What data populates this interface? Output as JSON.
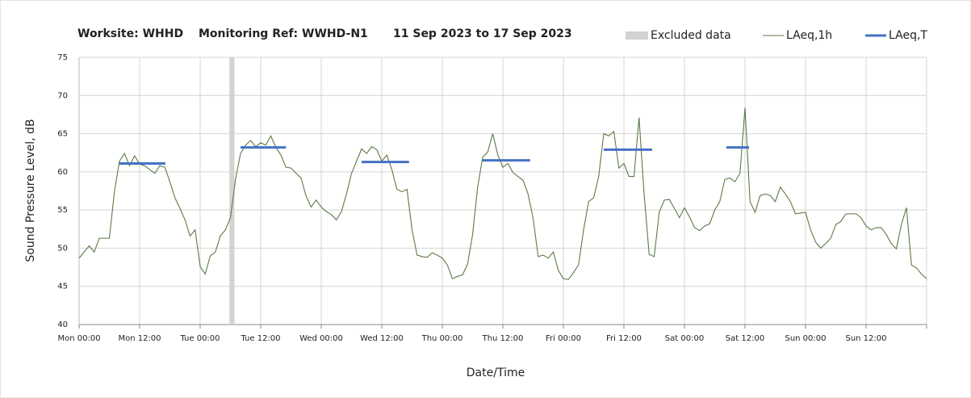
{
  "chart_data": {
    "type": "line",
    "title_parts": [
      "Worksite: WHHD",
      "Monitoring Ref: WWHD-N1",
      "11 Sep 2023 to 17 Sep 2023"
    ],
    "x_label": "Date/Time",
    "y_label": "Sound Pressure Level, dB",
    "xlim": [
      0,
      168
    ],
    "xticks": [
      {
        "value": 0,
        "label": "Mon 00:00"
      },
      {
        "value": 12,
        "label": "Mon 12:00"
      },
      {
        "value": 24,
        "label": "Tue 00:00"
      },
      {
        "value": 36,
        "label": "Tue 12:00"
      },
      {
        "value": 48,
        "label": "Wed 00:00"
      },
      {
        "value": 60,
        "label": "Wed 12:00"
      },
      {
        "value": 72,
        "label": "Thu 00:00"
      },
      {
        "value": 84,
        "label": "Thu 12:00"
      },
      {
        "value": 96,
        "label": "Fri 00:00"
      },
      {
        "value": 108,
        "label": "Fri 12:00"
      },
      {
        "value": 120,
        "label": "Sat 00:00"
      },
      {
        "value": 132,
        "label": "Sat 12:00"
      },
      {
        "value": 144,
        "label": "Sun 00:00"
      },
      {
        "value": 156,
        "label": "Sun 12:00"
      },
      {
        "value": 168,
        "label": ""
      }
    ],
    "ylim": [
      40,
      75
    ],
    "yticks": [
      40,
      45,
      50,
      55,
      60,
      65,
      70,
      75
    ],
    "grid": true,
    "legend": "top-right",
    "excluded": {
      "name": "Excluded data",
      "color": "#d3d3d3",
      "x": [
        29.8,
        30.8
      ]
    },
    "series": [
      {
        "name": "LAeq,1h",
        "color": "#5b7a47",
        "x": [
          0,
          1,
          2,
          3,
          4,
          5,
          6,
          7,
          8,
          9,
          10,
          11,
          12,
          13,
          14,
          15,
          16,
          17,
          18,
          19,
          20,
          21,
          22,
          23,
          24,
          25,
          26,
          27,
          28,
          29,
          30,
          31,
          32,
          33,
          34,
          35,
          36,
          37,
          38,
          39,
          40,
          41,
          42,
          43,
          44,
          45,
          46,
          47,
          48,
          49,
          50,
          51,
          52,
          53,
          54,
          55,
          56,
          57,
          58,
          59,
          60,
          61,
          62,
          63,
          64,
          65,
          66,
          67,
          68,
          69,
          70,
          71,
          72,
          73,
          74,
          75,
          76,
          77,
          78,
          79,
          80,
          81,
          82,
          83,
          84,
          85,
          86,
          87,
          88,
          89,
          90,
          91,
          92,
          93,
          94,
          95,
          96,
          97,
          98,
          99,
          100,
          101,
          102,
          103,
          104,
          105,
          106,
          107,
          108,
          109,
          110,
          111,
          112,
          113,
          114,
          115,
          116,
          117,
          118,
          119,
          120,
          121,
          122,
          123,
          124,
          125,
          126,
          127,
          128,
          129,
          130,
          131,
          132,
          133,
          134,
          135,
          136,
          137,
          138,
          139,
          140,
          141,
          142,
          143,
          144,
          145,
          146,
          147,
          148,
          149,
          150,
          151,
          152,
          153,
          154,
          155,
          156,
          157,
          158,
          159,
          160,
          161,
          162,
          163,
          164,
          165,
          166,
          167,
          168
        ],
        "values": [
          48.7,
          49.5,
          50.3,
          49.5,
          51.3,
          51.3,
          51.3,
          57.4,
          61.4,
          62.4,
          60.8,
          62.1,
          61.0,
          60.8,
          60.3,
          59.8,
          60.8,
          60.6,
          58.7,
          56.6,
          55.2,
          53.7,
          51.6,
          52.4,
          47.6,
          46.6,
          49.0,
          49.5,
          51.6,
          52.4,
          54.0,
          59.0,
          62.4,
          63.5,
          64.1,
          63.3,
          63.8,
          63.5,
          64.7,
          63.2,
          62.2,
          60.6,
          60.5,
          59.8,
          59.2,
          56.8,
          55.4,
          56.3,
          55.4,
          54.8,
          54.4,
          53.7,
          54.8,
          57.1,
          59.8,
          61.4,
          63.0,
          62.4,
          63.3,
          62.9,
          61.4,
          62.2,
          60.3,
          57.7,
          57.4,
          57.7,
          52.4,
          49.1,
          48.9,
          48.8,
          49.4,
          49.1,
          48.7,
          47.8,
          46.0,
          46.3,
          46.5,
          47.9,
          51.8,
          58.0,
          61.9,
          62.6,
          65.0,
          62.2,
          60.6,
          61.1,
          59.9,
          59.4,
          58.9,
          57.1,
          53.9,
          48.9,
          49.1,
          48.7,
          49.5,
          47.1,
          46.0,
          45.9,
          46.8,
          47.8,
          52.4,
          56.1,
          56.6,
          59.4,
          65.0,
          64.7,
          65.3,
          60.5,
          61.1,
          59.4,
          59.4,
          67.1,
          57.1,
          49.2,
          48.9,
          54.7,
          56.3,
          56.4,
          55.2,
          54.0,
          55.3,
          54.1,
          52.7,
          52.3,
          52.9,
          53.2,
          55.0,
          56.1,
          59.0,
          59.2,
          58.7,
          59.8,
          68.4,
          56.1,
          54.7,
          56.9,
          57.1,
          56.9,
          56.1,
          58.0,
          57.1,
          56.1,
          54.5,
          54.6,
          54.7,
          52.4,
          50.8,
          50.0,
          50.6,
          51.3,
          53.1,
          53.5,
          54.5,
          54.5,
          54.5,
          54.0,
          52.9,
          52.4,
          52.7,
          52.7,
          51.8,
          50.6,
          49.9,
          53.1,
          55.3,
          47.8,
          47.4,
          46.6,
          46.0
        ]
      },
      {
        "name": "LAeq,T",
        "color": "#4472c4",
        "segments": [
          {
            "x": [
              8,
              17.1
            ],
            "value": 61.1
          },
          {
            "x": [
              32,
              41
            ],
            "value": 63.2
          },
          {
            "x": [
              56,
              65.4
            ],
            "value": 61.3
          },
          {
            "x": [
              80,
              89.4
            ],
            "value": 61.5
          },
          {
            "x": [
              104,
              113.6
            ],
            "value": 62.9
          },
          {
            "x": [
              128.3,
              132.8
            ],
            "value": 63.2
          }
        ]
      }
    ]
  }
}
